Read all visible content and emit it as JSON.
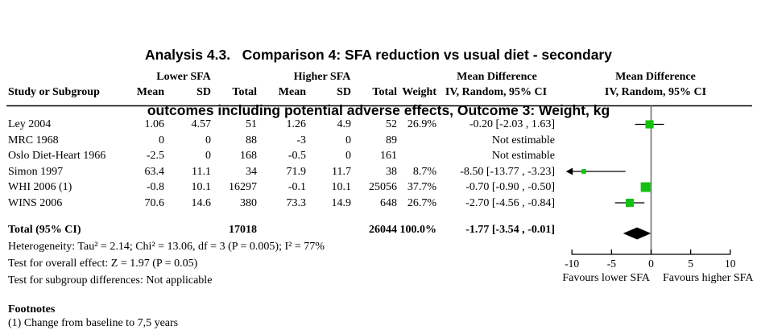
{
  "title": {
    "line1": "Analysis 4.3.   Comparison 4: SFA reduction vs usual diet - secondary",
    "line2": "outcomes including potential adverse effects, Outcome 3: Weight, kg"
  },
  "table": {
    "group_headers": {
      "lower": "Lower SFA",
      "higher": "Higher SFA"
    },
    "col_headers": {
      "study": "Study or Subgroup",
      "mean": "Mean",
      "sd": "SD",
      "total": "Total",
      "weight": "Weight",
      "md_text": "Mean Difference",
      "md_sub": "IV, Random, 95% CI"
    },
    "rows": [
      {
        "study": "Ley 2004",
        "mean1": "1.06",
        "sd1": "4.57",
        "total1": "51",
        "mean2": "1.26",
        "sd2": "4.9",
        "total2": "52",
        "weight": "26.9%",
        "ci": "-0.20 [-2.03 , 1.63]"
      },
      {
        "study": "MRC 1968",
        "mean1": "0",
        "sd1": "0",
        "total1": "88",
        "mean2": "-3",
        "sd2": "0",
        "total2": "89",
        "weight": "",
        "ci": "Not estimable"
      },
      {
        "study": "Oslo Diet-Heart 1966",
        "mean1": "-2.5",
        "sd1": "0",
        "total1": "168",
        "mean2": "-0.5",
        "sd2": "0",
        "total2": "161",
        "weight": "",
        "ci": "Not estimable"
      },
      {
        "study": "Simon 1997",
        "mean1": "63.4",
        "sd1": "11.1",
        "total1": "34",
        "mean2": "71.9",
        "sd2": "11.7",
        "total2": "38",
        "weight": "8.7%",
        "ci": "-8.50 [-13.77 , -3.23]"
      },
      {
        "study": "WHI 2006 (1)",
        "mean1": "-0.8",
        "sd1": "10.1",
        "total1": "16297",
        "mean2": "-0.1",
        "sd2": "10.1",
        "total2": "25056",
        "weight": "37.7%",
        "ci": "-0.70 [-0.90 , -0.50]"
      },
      {
        "study": "WINS 2006",
        "mean1": "70.6",
        "sd1": "14.6",
        "total1": "380",
        "mean2": "73.3",
        "sd2": "14.9",
        "total2": "648",
        "weight": "26.7%",
        "ci": "-2.70 [-4.56 , -0.84]"
      }
    ],
    "total_row": {
      "label": "Total (95% CI)",
      "total1": "17018",
      "total2": "26044",
      "weight": "100.0%",
      "ci": "-1.77 [-3.54 , -0.01]"
    }
  },
  "stats": {
    "heterogeneity": "Heterogeneity: Tau² = 2.14; Chi² = 13.06, df = 3 (P = 0.005); I² = 77%",
    "overall_effect": "Test for overall effect: Z = 1.97 (P = 0.05)",
    "subgroup_differences": "Test for subgroup differences: Not applicable"
  },
  "footnotes": {
    "heading": "Footnotes",
    "items": [
      "(1) Change from baseline to 7,5 years"
    ]
  },
  "chart_data": {
    "type": "forest",
    "effect_measure": "Mean Difference, IV, Random, 95% CI",
    "x_axis": {
      "min": -10,
      "max": 10,
      "ticks": [
        -10,
        -5,
        0,
        5,
        10
      ],
      "label_left": "Favours lower SFA",
      "label_right": "Favours higher SFA"
    },
    "studies": [
      {
        "name": "Ley 2004",
        "md": -0.2,
        "ci_low": -2.03,
        "ci_high": 1.63,
        "weight_pct": 26.9
      },
      {
        "name": "MRC 1968",
        "md": null,
        "note": "Not estimable"
      },
      {
        "name": "Oslo Diet-Heart 1966",
        "md": null,
        "note": "Not estimable"
      },
      {
        "name": "Simon 1997",
        "md": -8.5,
        "ci_low": -13.77,
        "ci_high": -3.23,
        "weight_pct": 8.7
      },
      {
        "name": "WHI 2006 (1)",
        "md": -0.7,
        "ci_low": -0.9,
        "ci_high": -0.5,
        "weight_pct": 37.7
      },
      {
        "name": "WINS 2006",
        "md": -2.7,
        "ci_low": -4.56,
        "ci_high": -0.84,
        "weight_pct": 26.7
      }
    ],
    "total": {
      "name": "Total (95% CI)",
      "md": -1.77,
      "ci_low": -3.54,
      "ci_high": -0.01,
      "weight_pct": 100.0
    },
    "marker_color": "#12c20e",
    "diamond_color": "#000000",
    "zero_line_color": "#7c7c7c"
  }
}
